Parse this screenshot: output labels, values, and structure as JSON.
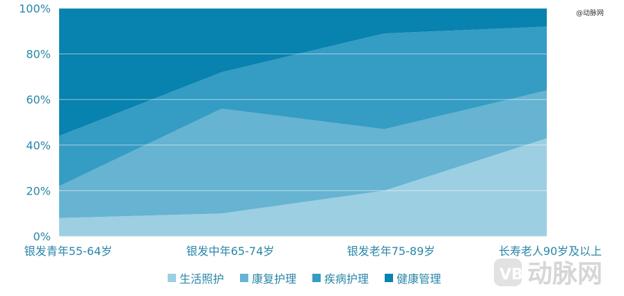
{
  "chart_data": {
    "type": "area",
    "stacking": "percent",
    "categories": [
      "银发青年55-64岁",
      "银发中年65-74岁",
      "银发老年75-89岁",
      "长寿老人90岁及以上"
    ],
    "series": [
      {
        "name": "生活照护",
        "values": [
          8,
          10,
          20,
          43
        ],
        "color": "#9ccfe2"
      },
      {
        "name": "康复护理",
        "values": [
          14,
          46,
          27,
          21
        ],
        "color": "#66b3d2"
      },
      {
        "name": "疾病护理",
        "values": [
          22,
          16,
          42,
          28
        ],
        "color": "#359cc4"
      },
      {
        "name": "健康管理",
        "values": [
          56,
          28,
          11,
          8
        ],
        "color": "#0882ae"
      }
    ],
    "y_ticks": [
      "0%",
      "20%",
      "40%",
      "60%",
      "80%",
      "100%"
    ],
    "ylim": [
      0,
      100
    ],
    "grid": true,
    "legend_position": "bottom",
    "xlabel": "",
    "ylabel": ""
  },
  "watermark": {
    "top_text": "@动脉网",
    "logo_text": "动脉网"
  }
}
